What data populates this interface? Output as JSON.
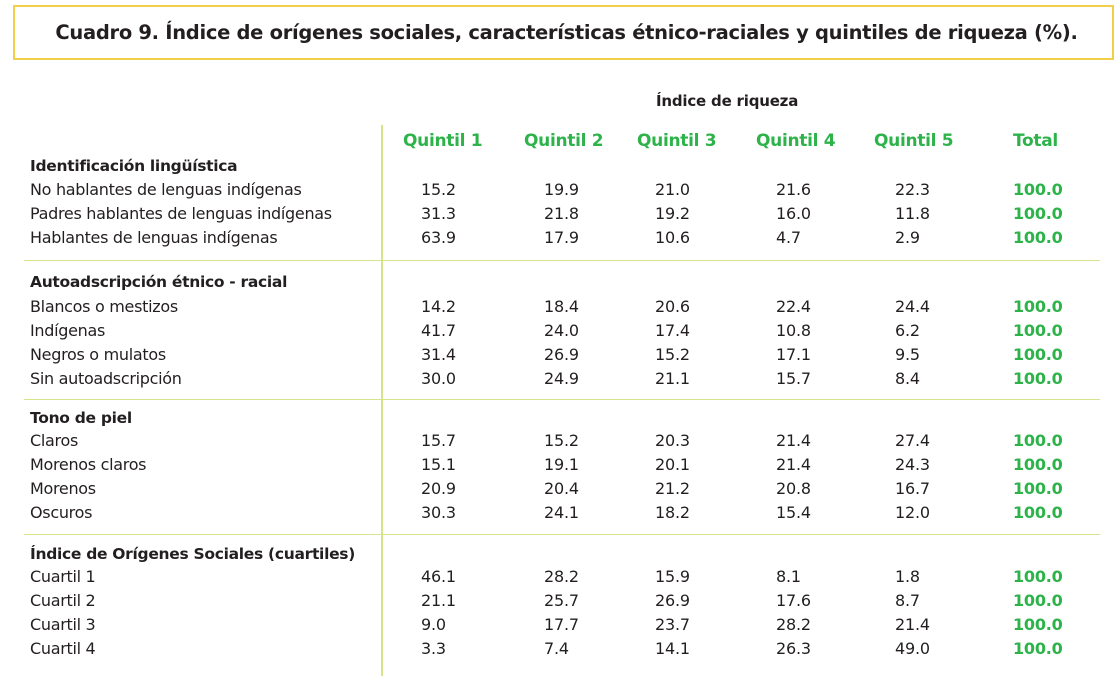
{
  "title": "Cuadro 9. Índice de orígenes sociales, características étnico-raciales y quintiles de riqueza (%).",
  "group_header": "Índice de riqueza",
  "columns": [
    "Quintil 1",
    "Quintil 2",
    "Quintil 3",
    "Quintil 4",
    "Quintil 5",
    "Total"
  ],
  "accent_color": "#2db34a",
  "frame_color": "#f2cf49",
  "rule_color": "#d3e48a",
  "sections": [
    {
      "title": "Identificación lingüística",
      "rows": [
        {
          "label": "No hablantes de lenguas indígenas",
          "values": [
            "15.2",
            "19.9",
            "21.0",
            "21.6",
            "22.3",
            "100.0"
          ]
        },
        {
          "label": "Padres hablantes de lenguas indígenas",
          "values": [
            "31.3",
            "21.8",
            "19.2",
            "16.0",
            "11.8",
            "100.0"
          ]
        },
        {
          "label": "Hablantes de lenguas indígenas",
          "values": [
            "63.9",
            "17.9",
            "10.6",
            "4.7",
            "2.9",
            "100.0"
          ]
        }
      ]
    },
    {
      "title": "Autoadscripción étnico - racial",
      "rows": [
        {
          "label": "Blancos o mestizos",
          "values": [
            "14.2",
            "18.4",
            "20.6",
            "22.4",
            "24.4",
            "100.0"
          ]
        },
        {
          "label": "Indígenas",
          "values": [
            "41.7",
            "24.0",
            "17.4",
            "10.8",
            "6.2",
            "100.0"
          ]
        },
        {
          "label": "Negros o mulatos",
          "values": [
            "31.4",
            "26.9",
            "15.2",
            "17.1",
            "9.5",
            "100.0"
          ]
        },
        {
          "label": "Sin autoadscripción",
          "values": [
            "30.0",
            "24.9",
            "21.1",
            "15.7",
            "8.4",
            "100.0"
          ]
        }
      ]
    },
    {
      "title": "Tono de piel",
      "rows": [
        {
          "label": "Claros",
          "values": [
            "15.7",
            "15.2",
            "20.3",
            "21.4",
            "27.4",
            "100.0"
          ]
        },
        {
          "label": "Morenos claros",
          "values": [
            "15.1",
            "19.1",
            "20.1",
            "21.4",
            "24.3",
            "100.0"
          ]
        },
        {
          "label": "Morenos",
          "values": [
            "20.9",
            "20.4",
            "21.2",
            "20.8",
            "16.7",
            "100.0"
          ]
        },
        {
          "label": "Oscuros",
          "values": [
            "30.3",
            "24.1",
            "18.2",
            "15.4",
            "12.0",
            "100.0"
          ]
        }
      ]
    },
    {
      "title": "Índice de Orígenes Sociales (cuartiles)",
      "rows": [
        {
          "label": "Cuartil 1",
          "values": [
            "46.1",
            "28.2",
            "15.9",
            "8.1",
            "1.8",
            "100.0"
          ]
        },
        {
          "label": "Cuartil 2",
          "values": [
            "21.1",
            "25.7",
            "26.9",
            "17.6",
            "8.7",
            "100.0"
          ]
        },
        {
          "label": "Cuartil 3",
          "values": [
            "9.0",
            "17.7",
            "23.7",
            "28.2",
            "21.4",
            "100.0"
          ]
        },
        {
          "label": "Cuartil 4",
          "values": [
            "3.3",
            "7.4",
            "14.1",
            "26.3",
            "49.0",
            "100.0"
          ]
        }
      ]
    }
  ]
}
